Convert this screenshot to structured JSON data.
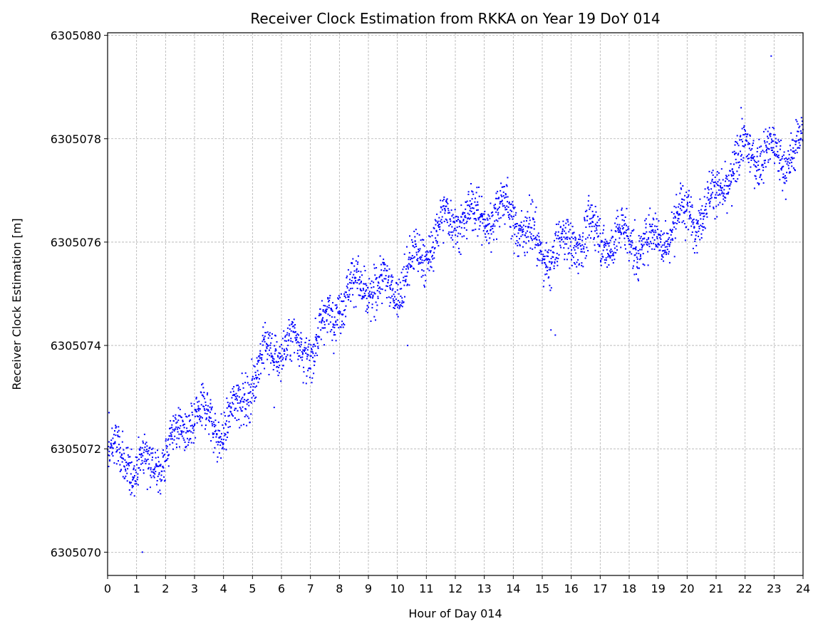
{
  "chart_data": {
    "type": "scatter",
    "title": "Receiver Clock Estimation from RKKA on Year 19 DoY 014",
    "xlabel": "Hour of Day 014",
    "ylabel": "Receiver Clock Estimation [m]",
    "xlim": [
      0,
      24
    ],
    "ylim": [
      6305069.55,
      6305080.05
    ],
    "xticks": [
      0,
      1,
      2,
      3,
      4,
      5,
      6,
      7,
      8,
      9,
      10,
      11,
      12,
      13,
      14,
      15,
      16,
      17,
      18,
      19,
      20,
      21,
      22,
      23,
      24
    ],
    "xtick_labels": [
      "0",
      "1",
      "2",
      "3",
      "4",
      "5",
      "6",
      "7",
      "8",
      "9",
      "10",
      "11",
      "12",
      "13",
      "14",
      "15",
      "16",
      "17",
      "18",
      "19",
      "20",
      "21",
      "22",
      "23",
      "24"
    ],
    "yticks": [
      6305070,
      6305072,
      6305074,
      6305076,
      6305078,
      6305080
    ],
    "ytick_labels": [
      "6305070",
      "6305072",
      "6305074",
      "6305076",
      "6305078",
      "6305080"
    ],
    "grid": true,
    "marker_color": "#0000ff",
    "series": [
      {
        "trend": {
          "x": [
            0,
            1,
            2,
            3,
            4,
            5,
            6,
            7,
            8,
            9,
            10,
            11,
            12,
            13,
            14,
            15,
            16,
            17,
            18,
            19,
            20,
            21,
            22,
            23,
            24
          ],
          "y": [
            6305071.7,
            6305071.7,
            6305072.0,
            6305072.5,
            6305072.5,
            6305073.4,
            6305073.9,
            6305074.1,
            6305074.8,
            6305075.1,
            6305075.3,
            6305075.7,
            6305076.6,
            6305076.6,
            6305076.4,
            6305075.9,
            6305076.0,
            6305076.0,
            6305076.2,
            6305075.9,
            6305076.5,
            6305077.0,
            6305077.6,
            6305077.7,
            6305078.0
          ]
        },
        "spread_m": 0.8,
        "n_points": 2880,
        "outliers": {
          "x": [
            1.2,
            22.9,
            15.3,
            15.45,
            0.05,
            5.75,
            10.35
          ],
          "y": [
            6305070.0,
            6305079.6,
            6305074.3,
            6305074.2,
            6305072.7,
            6305072.8,
            6305074.0
          ]
        }
      }
    ]
  }
}
